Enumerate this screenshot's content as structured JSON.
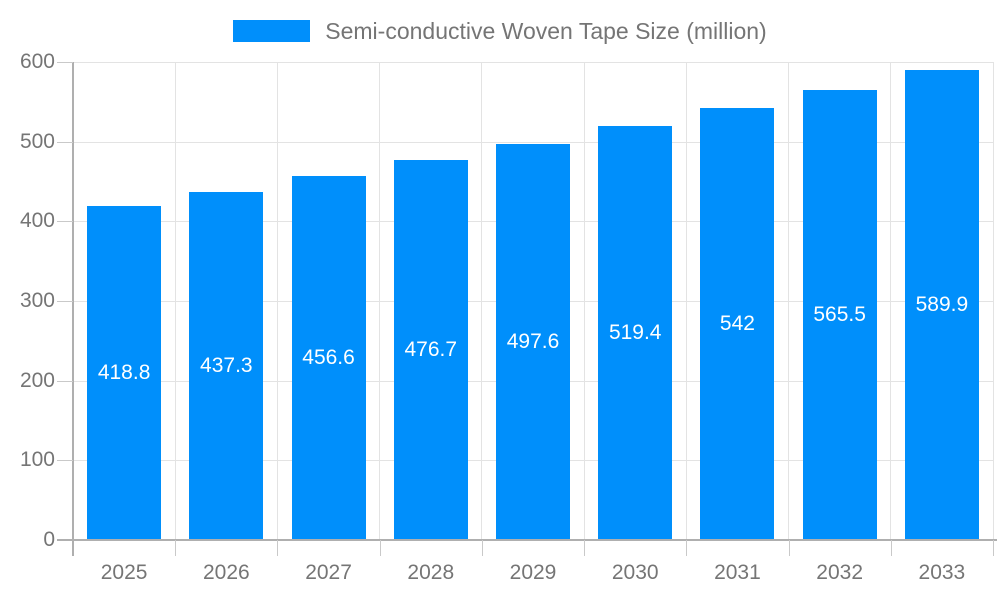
{
  "legend": {
    "swatch_color": "#008FFB"
  },
  "chart_data": {
    "type": "bar",
    "title": "Semi-conductive Woven Tape Size (million)",
    "categories": [
      "2025",
      "2026",
      "2027",
      "2028",
      "2029",
      "2030",
      "2031",
      "2032",
      "2033"
    ],
    "values": [
      418.8,
      437.3,
      456.6,
      476.7,
      497.6,
      519.4,
      542,
      565.5,
      589.9
    ],
    "xlabel": "",
    "ylabel": "",
    "ylim": [
      0,
      600
    ],
    "yticks": [
      0,
      100,
      200,
      300,
      400,
      500,
      600
    ],
    "grid": true,
    "legend_position": "top-center",
    "value_labels_shown": true,
    "value_label_position": "inside-center",
    "colors": {
      "bar": "#008FFB",
      "axis_text": "#757575",
      "value_label": "#FFFFFF",
      "gridline": "#E3E3E3",
      "axis_line": "#AFAFAF",
      "tick": "#C9C9C9"
    }
  }
}
